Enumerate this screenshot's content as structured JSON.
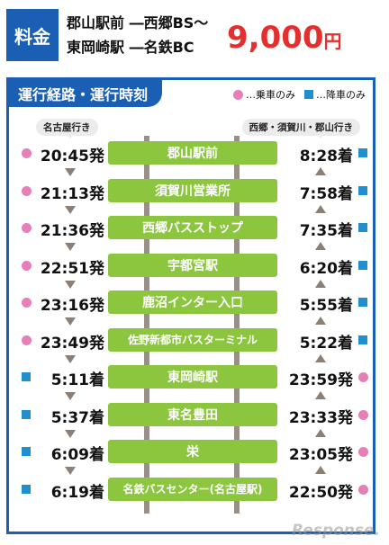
{
  "fare": {
    "badge": "料金",
    "route_line1": "郡山駅前 ―西郷BS～",
    "route_line2": "東岡崎駅 ―名鉄BC",
    "amount": "9,000",
    "currency": "円"
  },
  "timetable": {
    "title": "運行経路・運行時刻",
    "legend_boarding": "…乗車のみ",
    "legend_alighting": "…降車のみ",
    "dir_left": "名古屋行き",
    "dir_right": "西郷・須賀川・郡山行き",
    "colors": {
      "boarding": "#e67fb7",
      "alighting": "#1f8fd0",
      "stop": "#8cc63f",
      "frame": "#1a5fb4"
    },
    "stops": [
      {
        "name": "郡山駅前",
        "left_time": "20:45発",
        "left_type": "boarding",
        "right_time": "8:28着",
        "right_type": "alighting"
      },
      {
        "name": "須賀川営業所",
        "left_time": "21:13発",
        "left_type": "boarding",
        "right_time": "7:58着",
        "right_type": "alighting"
      },
      {
        "name": "西郷バスストップ",
        "left_time": "21:36発",
        "left_type": "boarding",
        "right_time": "7:35着",
        "right_type": "alighting"
      },
      {
        "name": "宇都宮駅",
        "left_time": "22:51発",
        "left_type": "boarding",
        "right_time": "6:20着",
        "right_type": "alighting"
      },
      {
        "name": "鹿沼インター入口",
        "left_time": "23:16発",
        "left_type": "boarding",
        "right_time": "5:55着",
        "right_type": "alighting"
      },
      {
        "name": "佐野新都市バスターミナル",
        "left_time": "23:49発",
        "left_type": "boarding",
        "right_time": "5:22着",
        "right_type": "alighting"
      },
      {
        "name": "東岡崎駅",
        "left_time": "5:11着",
        "left_type": "alighting",
        "right_time": "23:59発",
        "right_type": "boarding"
      },
      {
        "name": "東名豊田",
        "left_time": "5:37着",
        "left_type": "alighting",
        "right_time": "23:33発",
        "right_type": "boarding"
      },
      {
        "name": "栄",
        "left_time": "6:09着",
        "left_type": "alighting",
        "right_time": "23:05発",
        "right_type": "boarding"
      },
      {
        "name": "名鉄バスセンター(名古屋駅)",
        "left_time": "6:19着",
        "left_type": "alighting",
        "right_time": "22:50発",
        "right_type": "boarding"
      }
    ]
  },
  "watermark": "Response."
}
